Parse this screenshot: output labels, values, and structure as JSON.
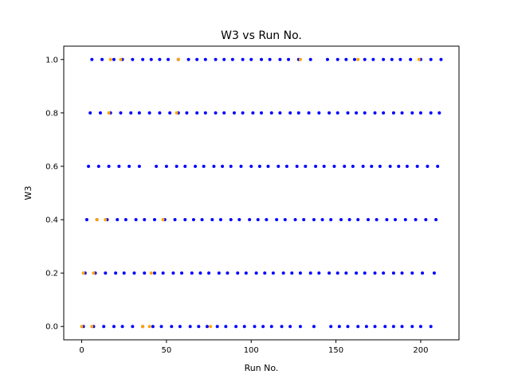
{
  "chart_data": {
    "type": "scatter",
    "title": "W3 vs Run No.",
    "xlabel": "Run No.",
    "ylabel": "W3",
    "xlim": [
      -10.6,
      222.6
    ],
    "ylim": [
      -0.05,
      1.05
    ],
    "xticks": [
      0,
      50,
      100,
      150,
      200
    ],
    "yticks": [
      "0.0",
      "0.2",
      "0.4",
      "0.6",
      "0.8",
      "1.0"
    ],
    "grid": false,
    "legend": "none",
    "series": [
      {
        "color": "#0000ff",
        "x": [
          6,
          12,
          19,
          24,
          30,
          36,
          41,
          46,
          51,
          57,
          63,
          68,
          73,
          79,
          84,
          89,
          95,
          100,
          106,
          111,
          117,
          122,
          128,
          135,
          145,
          151,
          156,
          161,
          167,
          172,
          178,
          183,
          188,
          194,
          200,
          206,
          212,
          5,
          11,
          17,
          23,
          29,
          34,
          40,
          46,
          52,
          57,
          62,
          68,
          73,
          79,
          84,
          90,
          95,
          101,
          106,
          112,
          117,
          123,
          128,
          134,
          140,
          146,
          151,
          157,
          162,
          167,
          173,
          178,
          184,
          189,
          195,
          200,
          206,
          211,
          4,
          10,
          16,
          22,
          28,
          34,
          44,
          50,
          56,
          61,
          67,
          72,
          78,
          83,
          88,
          94,
          100,
          105,
          110,
          116,
          121,
          127,
          132,
          138,
          143,
          149,
          155,
          160,
          166,
          171,
          176,
          182,
          187,
          192,
          198,
          204,
          210,
          3,
          9,
          15,
          21,
          26,
          32,
          37,
          43,
          49,
          55,
          61,
          66,
          71,
          77,
          82,
          88,
          93,
          99,
          104,
          109,
          115,
          120,
          126,
          131,
          137,
          142,
          147,
          153,
          158,
          163,
          169,
          174,
          180,
          185,
          191,
          197,
          203,
          209,
          2,
          8,
          14,
          20,
          25,
          31,
          37,
          43,
          48,
          54,
          59,
          65,
          70,
          75,
          81,
          86,
          92,
          97,
          103,
          108,
          113,
          119,
          124,
          129,
          135,
          140,
          146,
          151,
          156,
          162,
          167,
          173,
          178,
          184,
          189,
          195,
          201,
          208,
          1,
          7,
          13,
          19,
          24,
          30,
          36,
          42,
          47,
          53,
          58,
          64,
          69,
          74,
          80,
          85,
          91,
          96,
          102,
          107,
          112,
          118,
          123,
          129,
          137,
          147,
          152,
          157,
          163,
          168,
          173,
          179,
          184,
          189,
          195,
          200,
          206
        ],
        "y": [
          1.0,
          1.0,
          1.0,
          1.0,
          1.0,
          1.0,
          1.0,
          1.0,
          1.0,
          1.0,
          1.0,
          1.0,
          1.0,
          1.0,
          1.0,
          1.0,
          1.0,
          1.0,
          1.0,
          1.0,
          1.0,
          1.0,
          1.0,
          1.0,
          1.0,
          1.0,
          1.0,
          1.0,
          1.0,
          1.0,
          1.0,
          1.0,
          1.0,
          1.0,
          1.0,
          1.0,
          1.0,
          0.8,
          0.8,
          0.8,
          0.8,
          0.8,
          0.8,
          0.8,
          0.8,
          0.8,
          0.8,
          0.8,
          0.8,
          0.8,
          0.8,
          0.8,
          0.8,
          0.8,
          0.8,
          0.8,
          0.8,
          0.8,
          0.8,
          0.8,
          0.8,
          0.8,
          0.8,
          0.8,
          0.8,
          0.8,
          0.8,
          0.8,
          0.8,
          0.8,
          0.8,
          0.8,
          0.8,
          0.8,
          0.8,
          0.6,
          0.6,
          0.6,
          0.6,
          0.6,
          0.6,
          0.6,
          0.6,
          0.6,
          0.6,
          0.6,
          0.6,
          0.6,
          0.6,
          0.6,
          0.6,
          0.6,
          0.6,
          0.6,
          0.6,
          0.6,
          0.6,
          0.6,
          0.6,
          0.6,
          0.6,
          0.6,
          0.6,
          0.6,
          0.6,
          0.6,
          0.6,
          0.6,
          0.6,
          0.6,
          0.6,
          0.6,
          0.4,
          0.4,
          0.4,
          0.4,
          0.4,
          0.4,
          0.4,
          0.4,
          0.4,
          0.4,
          0.4,
          0.4,
          0.4,
          0.4,
          0.4,
          0.4,
          0.4,
          0.4,
          0.4,
          0.4,
          0.4,
          0.4,
          0.4,
          0.4,
          0.4,
          0.4,
          0.4,
          0.4,
          0.4,
          0.4,
          0.4,
          0.4,
          0.4,
          0.4,
          0.4,
          0.4,
          0.4,
          0.4,
          0.2,
          0.2,
          0.2,
          0.2,
          0.2,
          0.2,
          0.2,
          0.2,
          0.2,
          0.2,
          0.2,
          0.2,
          0.2,
          0.2,
          0.2,
          0.2,
          0.2,
          0.2,
          0.2,
          0.2,
          0.2,
          0.2,
          0.2,
          0.2,
          0.2,
          0.2,
          0.2,
          0.2,
          0.2,
          0.2,
          0.2,
          0.2,
          0.2,
          0.2,
          0.2,
          0.2,
          0.2,
          0.2,
          0.0,
          0.0,
          0.0,
          0.0,
          0.0,
          0.0,
          0.0,
          0.0,
          0.0,
          0.0,
          0.0,
          0.0,
          0.0,
          0.0,
          0.0,
          0.0,
          0.0,
          0.0,
          0.0,
          0.0,
          0.0,
          0.0,
          0.0,
          0.0,
          0.0,
          0.0,
          0.0,
          0.0,
          0.0,
          0.0,
          0.0,
          0.0,
          0.0,
          0.0,
          0.0,
          0.0,
          0.0
        ]
      },
      {
        "color": "#ffa500",
        "x": [
          17,
          23,
          57,
          129,
          163,
          199,
          16,
          56,
          9,
          14,
          48,
          1,
          7,
          41,
          0,
          6,
          36,
          40,
          76
        ],
        "y": [
          1.0,
          1.0,
          1.0,
          1.0,
          1.0,
          1.0,
          0.8,
          0.8,
          0.4,
          0.4,
          0.4,
          0.2,
          0.2,
          0.2,
          0.0,
          0.0,
          0.0,
          0.0,
          0.0
        ]
      }
    ]
  }
}
